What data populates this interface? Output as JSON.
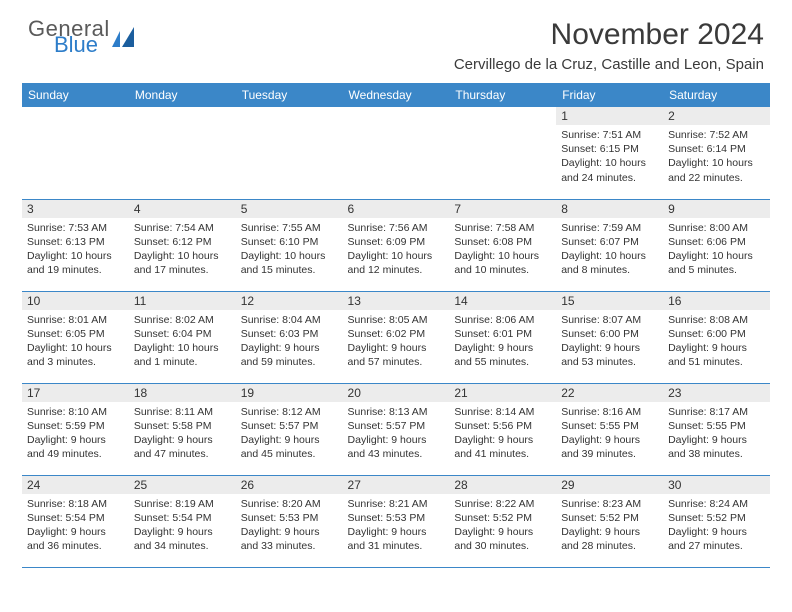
{
  "brand": {
    "line1": "General",
    "line2": "Blue"
  },
  "title": "November 2024",
  "location": "Cervillego de la Cruz, Castille and Leon, Spain",
  "colors": {
    "header_bg": "#3b87c8",
    "header_text": "#ffffff",
    "daynum_bg": "#ececec",
    "border": "#3b87c8",
    "text": "#333333",
    "brand_blue": "#2d7dc9",
    "brand_gray": "#5a5a5a"
  },
  "days_of_week": [
    "Sunday",
    "Monday",
    "Tuesday",
    "Wednesday",
    "Thursday",
    "Friday",
    "Saturday"
  ],
  "weeks": [
    [
      null,
      null,
      null,
      null,
      null,
      {
        "n": "1",
        "sunrise": "7:51 AM",
        "sunset": "6:15 PM",
        "daylight": "10 hours and 24 minutes."
      },
      {
        "n": "2",
        "sunrise": "7:52 AM",
        "sunset": "6:14 PM",
        "daylight": "10 hours and 22 minutes."
      }
    ],
    [
      {
        "n": "3",
        "sunrise": "7:53 AM",
        "sunset": "6:13 PM",
        "daylight": "10 hours and 19 minutes."
      },
      {
        "n": "4",
        "sunrise": "7:54 AM",
        "sunset": "6:12 PM",
        "daylight": "10 hours and 17 minutes."
      },
      {
        "n": "5",
        "sunrise": "7:55 AM",
        "sunset": "6:10 PM",
        "daylight": "10 hours and 15 minutes."
      },
      {
        "n": "6",
        "sunrise": "7:56 AM",
        "sunset": "6:09 PM",
        "daylight": "10 hours and 12 minutes."
      },
      {
        "n": "7",
        "sunrise": "7:58 AM",
        "sunset": "6:08 PM",
        "daylight": "10 hours and 10 minutes."
      },
      {
        "n": "8",
        "sunrise": "7:59 AM",
        "sunset": "6:07 PM",
        "daylight": "10 hours and 8 minutes."
      },
      {
        "n": "9",
        "sunrise": "8:00 AM",
        "sunset": "6:06 PM",
        "daylight": "10 hours and 5 minutes."
      }
    ],
    [
      {
        "n": "10",
        "sunrise": "8:01 AM",
        "sunset": "6:05 PM",
        "daylight": "10 hours and 3 minutes."
      },
      {
        "n": "11",
        "sunrise": "8:02 AM",
        "sunset": "6:04 PM",
        "daylight": "10 hours and 1 minute."
      },
      {
        "n": "12",
        "sunrise": "8:04 AM",
        "sunset": "6:03 PM",
        "daylight": "9 hours and 59 minutes."
      },
      {
        "n": "13",
        "sunrise": "8:05 AM",
        "sunset": "6:02 PM",
        "daylight": "9 hours and 57 minutes."
      },
      {
        "n": "14",
        "sunrise": "8:06 AM",
        "sunset": "6:01 PM",
        "daylight": "9 hours and 55 minutes."
      },
      {
        "n": "15",
        "sunrise": "8:07 AM",
        "sunset": "6:00 PM",
        "daylight": "9 hours and 53 minutes."
      },
      {
        "n": "16",
        "sunrise": "8:08 AM",
        "sunset": "6:00 PM",
        "daylight": "9 hours and 51 minutes."
      }
    ],
    [
      {
        "n": "17",
        "sunrise": "8:10 AM",
        "sunset": "5:59 PM",
        "daylight": "9 hours and 49 minutes."
      },
      {
        "n": "18",
        "sunrise": "8:11 AM",
        "sunset": "5:58 PM",
        "daylight": "9 hours and 47 minutes."
      },
      {
        "n": "19",
        "sunrise": "8:12 AM",
        "sunset": "5:57 PM",
        "daylight": "9 hours and 45 minutes."
      },
      {
        "n": "20",
        "sunrise": "8:13 AM",
        "sunset": "5:57 PM",
        "daylight": "9 hours and 43 minutes."
      },
      {
        "n": "21",
        "sunrise": "8:14 AM",
        "sunset": "5:56 PM",
        "daylight": "9 hours and 41 minutes."
      },
      {
        "n": "22",
        "sunrise": "8:16 AM",
        "sunset": "5:55 PM",
        "daylight": "9 hours and 39 minutes."
      },
      {
        "n": "23",
        "sunrise": "8:17 AM",
        "sunset": "5:55 PM",
        "daylight": "9 hours and 38 minutes."
      }
    ],
    [
      {
        "n": "24",
        "sunrise": "8:18 AM",
        "sunset": "5:54 PM",
        "daylight": "9 hours and 36 minutes."
      },
      {
        "n": "25",
        "sunrise": "8:19 AM",
        "sunset": "5:54 PM",
        "daylight": "9 hours and 34 minutes."
      },
      {
        "n": "26",
        "sunrise": "8:20 AM",
        "sunset": "5:53 PM",
        "daylight": "9 hours and 33 minutes."
      },
      {
        "n": "27",
        "sunrise": "8:21 AM",
        "sunset": "5:53 PM",
        "daylight": "9 hours and 31 minutes."
      },
      {
        "n": "28",
        "sunrise": "8:22 AM",
        "sunset": "5:52 PM",
        "daylight": "9 hours and 30 minutes."
      },
      {
        "n": "29",
        "sunrise": "8:23 AM",
        "sunset": "5:52 PM",
        "daylight": "9 hours and 28 minutes."
      },
      {
        "n": "30",
        "sunrise": "8:24 AM",
        "sunset": "5:52 PM",
        "daylight": "9 hours and 27 minutes."
      }
    ]
  ],
  "labels": {
    "sunrise": "Sunrise:",
    "sunset": "Sunset:",
    "daylight": "Daylight:"
  }
}
